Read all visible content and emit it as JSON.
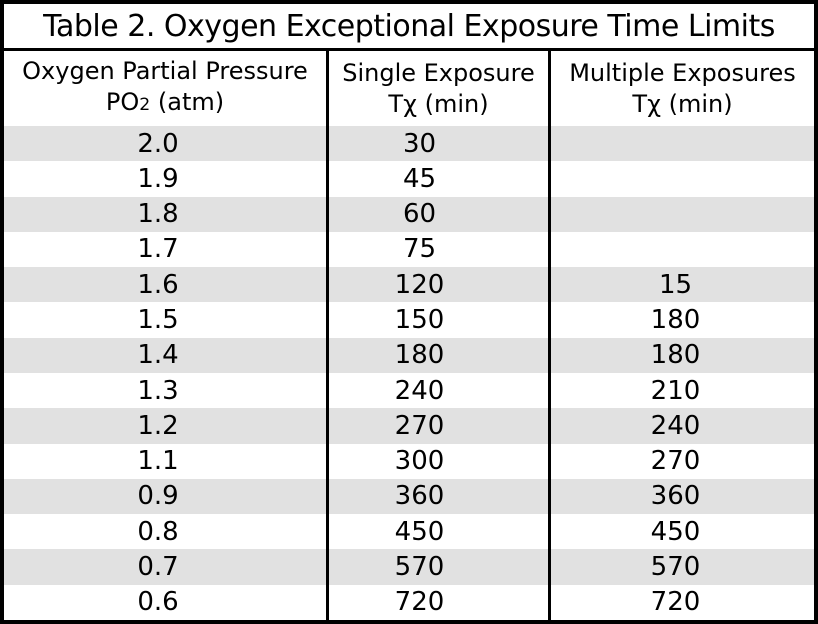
{
  "title": "Table 2. Oxygen Exceptional Exposure Time Limits",
  "columns": [
    {
      "line1": "Oxygen Partial Pressure",
      "line2_pre": "PO",
      "line2_sub": "2",
      "line2_post": " (atm)"
    },
    {
      "line1": "Single Exposure",
      "line2": "Tχ (min)"
    },
    {
      "line1": "Multiple Exposures",
      "line2": "Tχ (min)"
    }
  ],
  "rows": [
    {
      "po2": "2.0",
      "single": "30",
      "multiple": ""
    },
    {
      "po2": "1.9",
      "single": "45",
      "multiple": ""
    },
    {
      "po2": "1.8",
      "single": "60",
      "multiple": ""
    },
    {
      "po2": "1.7",
      "single": "75",
      "multiple": ""
    },
    {
      "po2": "1.6",
      "single": "120",
      "multiple": "15"
    },
    {
      "po2": "1.5",
      "single": "150",
      "multiple": "180"
    },
    {
      "po2": "1.4",
      "single": "180",
      "multiple": "180"
    },
    {
      "po2": "1.3",
      "single": "240",
      "multiple": "210"
    },
    {
      "po2": "1.2",
      "single": "270",
      "multiple": "240"
    },
    {
      "po2": "1.1",
      "single": "300",
      "multiple": "270"
    },
    {
      "po2": "0.9",
      "single": "360",
      "multiple": "360"
    },
    {
      "po2": "0.8",
      "single": "450",
      "multiple": "450"
    },
    {
      "po2": "0.7",
      "single": "570",
      "multiple": "570"
    },
    {
      "po2": "0.6",
      "single": "720",
      "multiple": "720"
    }
  ],
  "colors": {
    "border": "#000000",
    "stripe": "#e1e1e1",
    "background": "#ffffff",
    "text": "#000000"
  }
}
